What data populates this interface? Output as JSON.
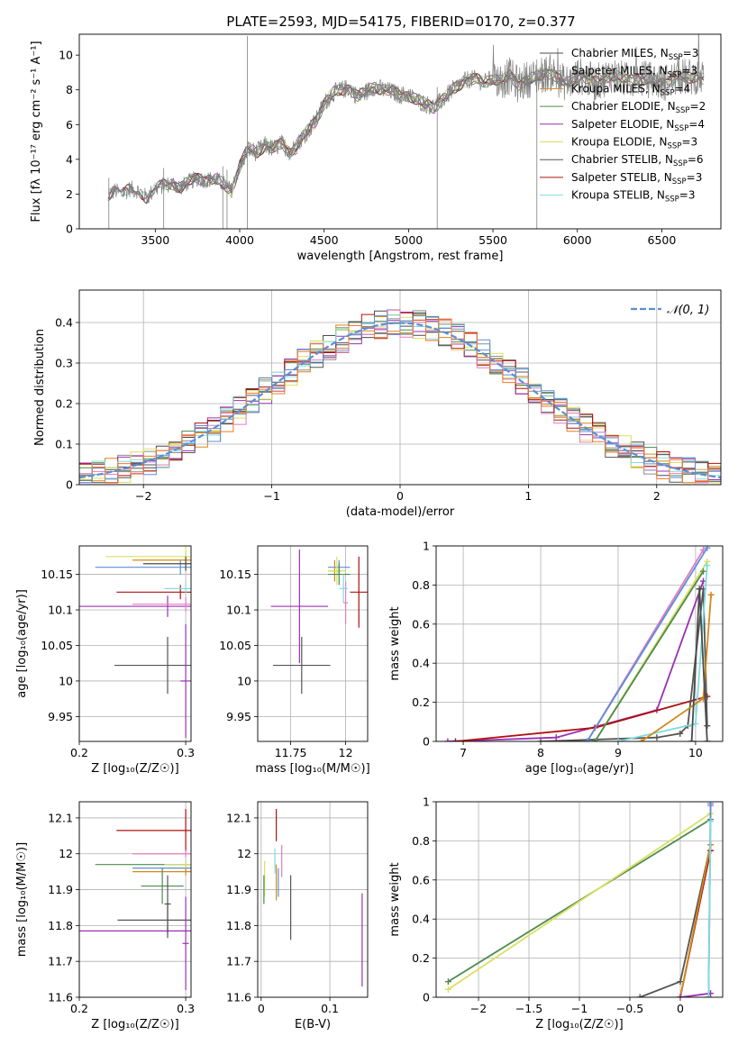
{
  "figure": {
    "title": "PLATE=2593, MJD=54175, FIBERID=0170, z=0.377"
  },
  "colors": {
    "Chabrier MILES": "#4a4a4a",
    "Salpeter MILES": "#8c8c8c",
    "Kroupa MILES": "#d08a1a",
    "Chabrier ELODIE": "#4f8a4f",
    "Salpeter ELODIE": "#9b30b4",
    "Kroupa ELODIE": "#d8e060",
    "Chabrier STELIB": "#555555",
    "Salpeter STELIB": "#b01010",
    "Kroupa STELIB": "#80dce0",
    "extra_pink": "#e27cc0",
    "extra_blue": "#5b8fd6",
    "extra_orange": "#f07a2a",
    "normal": "#5b8fd6"
  },
  "chart_data": [
    {
      "id": "spectrum",
      "type": "line",
      "title": "PLATE=2593, MJD=54175, FIBERID=0170, z=0.377",
      "xlabel": "wavelength [Angstrom, rest frame]",
      "ylabel": "Flux [fλ 10⁻¹⁷ erg cm⁻² s⁻¹ A⁻¹]",
      "xlim": [
        3050,
        6850
      ],
      "ylim": [
        0,
        11.2
      ],
      "xticks": [
        3500,
        4000,
        4500,
        5000,
        5500,
        6000,
        6500
      ],
      "yticks": [
        0,
        2,
        4,
        6,
        8,
        10
      ],
      "grid": false,
      "legend_position": "top-right",
      "legend": [
        {
          "label": "Chabrier MILES, N",
          "sub": "SSP",
          "suffix": "=3"
        },
        {
          "label": "Salpeter MILES, N",
          "sub": "SSP",
          "suffix": "=3"
        },
        {
          "label": "Kroupa MILES, N",
          "sub": "SSP",
          "suffix": "=4"
        },
        {
          "label": "Chabrier ELODIE, N",
          "sub": "SSP",
          "suffix": "=2"
        },
        {
          "label": "Salpeter ELODIE, N",
          "sub": "SSP",
          "suffix": "=4"
        },
        {
          "label": "Kroupa ELODIE, N",
          "sub": "SSP",
          "suffix": "=3"
        },
        {
          "label": "Chabrier STELIB, N",
          "sub": "SSP",
          "suffix": "=6"
        },
        {
          "label": "Salpeter STELIB, N",
          "sub": "SSP",
          "suffix": "=3"
        },
        {
          "label": "Kroupa STELIB, N",
          "sub": "SSP",
          "suffix": "=3"
        }
      ],
      "data_x": [
        3220,
        3260,
        3300,
        3350,
        3400,
        3450,
        3500,
        3550,
        3600,
        3650,
        3700,
        3750,
        3800,
        3850,
        3900,
        3950,
        4000,
        4050,
        4100,
        4150,
        4200,
        4250,
        4300,
        4350,
        4400,
        4450,
        4500,
        4550,
        4600,
        4650,
        4700,
        4750,
        4800,
        4850,
        4900,
        4950,
        5000,
        5050,
        5100,
        5150,
        5200,
        5250,
        5300,
        5350,
        5400,
        5450,
        5500,
        5550,
        5600,
        5650,
        5700,
        5750,
        5800,
        5850,
        5900,
        5950,
        6000,
        6050,
        6100,
        6150,
        6200,
        6250,
        6300,
        6350,
        6400,
        6450,
        6500,
        6550,
        6600,
        6650,
        6700,
        6750
      ],
      "data_y": [
        1.9,
        2.2,
        2.0,
        2.3,
        2.2,
        1.8,
        2.3,
        2.5,
        2.6,
        2.4,
        2.7,
        2.9,
        2.8,
        2.9,
        2.6,
        2.2,
        3.6,
        4.6,
        4.4,
        4.8,
        4.6,
        4.9,
        4.4,
        5.0,
        5.6,
        6.2,
        7.2,
        7.8,
        8.0,
        8.1,
        7.6,
        7.9,
        8.2,
        8.0,
        7.9,
        7.7,
        7.7,
        7.4,
        7.2,
        7.0,
        7.4,
        7.9,
        8.3,
        8.6,
        8.6,
        8.4,
        8.7,
        8.5,
        8.8,
        8.3,
        8.6,
        8.7,
        8.9,
        9.0,
        8.5,
        8.4,
        8.8,
        8.7,
        8.4,
        8.6,
        8.9,
        8.7,
        8.5,
        8.7,
        8.6,
        8.6,
        8.4,
        8.5,
        8.8,
        8.7,
        8.8,
        8.6
      ]
    },
    {
      "id": "residuals",
      "type": "histogram",
      "xlabel": "(data-model)/error",
      "ylabel": "Normed distribution",
      "xlim": [
        -2.5,
        2.5
      ],
      "ylim": [
        0,
        0.48
      ],
      "xticks": [
        -2,
        -1,
        0,
        1,
        2
      ],
      "yticks": [
        0.0,
        0.1,
        0.2,
        0.3,
        0.4
      ],
      "grid": true,
      "legend_position": "top-right",
      "legend": [
        {
          "label": "𝒩(0, 1)"
        }
      ],
      "bin_width": 0.1
    },
    {
      "id": "age_vs_Z",
      "type": "errorbar",
      "xlabel": "Z [log₁₀(Z/Z☉)]",
      "ylabel": "age  [log₁₀(age/yr)]",
      "xlim": [
        0.2,
        0.305
      ],
      "ylim": [
        9.915,
        10.19
      ],
      "xticks": [
        0.2,
        0.3
      ],
      "yticks": [
        9.95,
        10.0,
        10.05,
        10.1,
        10.15
      ],
      "grid": true,
      "points": [
        {
          "x": 0.283,
          "y": 10.022,
          "xerr": 0.05,
          "yerr": 0.04,
          "c": "#555555"
        },
        {
          "x": 0.283,
          "y": 10.105,
          "xerr": 0.1,
          "yerr": 0.015,
          "c": "#9b30b4"
        },
        {
          "x": 0.295,
          "y": 10.125,
          "xerr": 0.06,
          "yerr": 0.01,
          "c": "#b01010"
        },
        {
          "x": 0.295,
          "y": 10.16,
          "xerr": 0.08,
          "yerr": 0.01,
          "c": "#5b8fd6"
        },
        {
          "x": 0.3,
          "y": 10.17,
          "xerr": 0.05,
          "yerr": 0.01,
          "c": "#d08a1a"
        },
        {
          "x": 0.3,
          "y": 10.175,
          "xerr": 0.075,
          "yerr": 0.02,
          "c": "#d8e060"
        },
        {
          "x": 0.3,
          "y": 10.165,
          "xerr": 0.04,
          "yerr": 0.01,
          "c": "#4a4a4a"
        },
        {
          "x": 0.3,
          "y": 10.108,
          "xerr": 0.05,
          "yerr": 0.01,
          "c": "#e27cc0"
        },
        {
          "x": 0.3,
          "y": 10.13,
          "xerr": 0.02,
          "yerr": 0.01,
          "c": "#80dce0"
        },
        {
          "x": 0.3,
          "y": 10.0,
          "xerr": 0.005,
          "yerr": 0.08,
          "c": "#9b30b4"
        }
      ]
    },
    {
      "id": "age_vs_mass",
      "type": "errorbar",
      "xlabel": "mass [log₁₀(M/M☉)]",
      "ylabel": "",
      "xlim": [
        11.6,
        12.1
      ],
      "ylim": [
        9.915,
        10.19
      ],
      "xticks": [
        11.75,
        12.0
      ],
      "yticks": [
        9.95,
        10.0,
        10.05,
        10.1,
        10.15
      ],
      "grid": true,
      "points": [
        {
          "x": 11.8,
          "y": 10.022,
          "xerr": 0.13,
          "yerr": 0.04,
          "c": "#555555"
        },
        {
          "x": 11.79,
          "y": 10.105,
          "xerr": 0.13,
          "yerr": 0.08,
          "c": "#9b30b4"
        },
        {
          "x": 12.06,
          "y": 10.125,
          "xerr": 0.04,
          "yerr": 0.05,
          "c": "#b01010"
        },
        {
          "x": 11.97,
          "y": 10.16,
          "xerr": 0.05,
          "yerr": 0.01,
          "c": "#5b8fd6"
        },
        {
          "x": 11.95,
          "y": 10.155,
          "xerr": 0.03,
          "yerr": 0.015,
          "c": "#d08a1a"
        },
        {
          "x": 11.96,
          "y": 10.155,
          "xerr": 0.04,
          "yerr": 0.02,
          "c": "#d8e060"
        },
        {
          "x": 11.97,
          "y": 10.15,
          "xerr": 0.05,
          "yerr": 0.015,
          "c": "#4f8a4f"
        },
        {
          "x": 12.0,
          "y": 10.11,
          "xerr": 0.01,
          "yerr": 0.03,
          "c": "#e27cc0"
        },
        {
          "x": 11.99,
          "y": 10.13,
          "xerr": 0.02,
          "yerr": 0.02,
          "c": "#80dce0"
        }
      ]
    },
    {
      "id": "weight_vs_age",
      "type": "line",
      "xlabel": "age  [log₁₀(age/yr)]",
      "ylabel": "mass weight",
      "xlim": [
        6.65,
        10.35
      ],
      "ylim": [
        0,
        1.0
      ],
      "xticks": [
        7,
        8,
        9,
        10
      ],
      "yticks": [
        0.0,
        0.2,
        0.4,
        0.6,
        0.8,
        1.0
      ],
      "grid": true,
      "series": [
        {
          "c": "#9b30b4",
          "x": [
            6.8,
            8.2,
            9.5,
            10.1
          ],
          "y": [
            0.0,
            0.02,
            0.16,
            0.82
          ]
        },
        {
          "c": "#b01010",
          "x": [
            6.9,
            8.7,
            10.15
          ],
          "y": [
            0.0,
            0.07,
            0.23
          ]
        },
        {
          "c": "#555555",
          "x": [
            8.0,
            9.5,
            9.8,
            9.9,
            10.1,
            10.15
          ],
          "y": [
            0.0,
            0.02,
            0.04,
            0.08,
            0.78,
            0.08
          ]
        },
        {
          "c": "#e27cc0",
          "x": [
            8.6,
            10.1
          ],
          "y": [
            0.0,
            0.98
          ]
        },
        {
          "c": "#5b8fd6",
          "x": [
            8.6,
            10.15
          ],
          "y": [
            0.0,
            0.99
          ]
        },
        {
          "c": "#d8e060",
          "x": [
            8.7,
            10.15
          ],
          "y": [
            0.0,
            0.92
          ]
        },
        {
          "c": "#4f8a4f",
          "x": [
            8.7,
            10.1
          ],
          "y": [
            0.0,
            0.87
          ]
        },
        {
          "c": "#80dce0",
          "x": [
            9.0,
            10.0,
            10.15
          ],
          "y": [
            0.0,
            0.09,
            0.9
          ]
        },
        {
          "c": "#d08a1a",
          "x": [
            9.3,
            10.1,
            10.2
          ],
          "y": [
            0.0,
            0.22,
            0.75
          ]
        },
        {
          "c": "#4a4a4a",
          "x": [
            9.95,
            10.05,
            10.15
          ],
          "y": [
            0.0,
            0.78,
            0.0
          ]
        }
      ]
    },
    {
      "id": "mass_vs_Z",
      "type": "errorbar",
      "xlabel": "Z [log₁₀(Z/Z☉)]",
      "ylabel": "mass [log₁₀(M/M☉)]",
      "xlim": [
        0.2,
        0.305
      ],
      "ylim": [
        11.6,
        12.145
      ],
      "xticks": [
        0.2,
        0.3
      ],
      "yticks": [
        11.6,
        11.7,
        11.8,
        11.9,
        12.0,
        12.1
      ],
      "grid": true,
      "points": [
        {
          "x": 0.3,
          "y": 12.065,
          "xerr": 0.065,
          "yerr": 0.06,
          "c": "#b01010"
        },
        {
          "x": 0.3,
          "y": 12.0,
          "xerr": 0.05,
          "yerr": 0.01,
          "c": "#e27cc0"
        },
        {
          "x": 0.3,
          "y": 11.97,
          "xerr": 0.085,
          "yerr": 0.01,
          "c": "#4f8a4f"
        },
        {
          "x": 0.3,
          "y": 11.96,
          "xerr": 0.05,
          "yerr": 0.01,
          "c": "#5b8fd6"
        },
        {
          "x": 0.3,
          "y": 11.95,
          "xerr": 0.05,
          "yerr": 0.01,
          "c": "#d08a1a"
        },
        {
          "x": 0.3,
          "y": 11.97,
          "xerr": 0.02,
          "yerr": 0.01,
          "c": "#d8e060"
        },
        {
          "x": 0.278,
          "y": 11.91,
          "xerr": 0.02,
          "yerr": 0.05,
          "c": "#4f8a4f"
        },
        {
          "x": 0.283,
          "y": 11.815,
          "xerr": 0.047,
          "yerr": 0.05,
          "c": "#555555"
        },
        {
          "x": 0.283,
          "y": 11.785,
          "xerr": 0.1,
          "yerr": 0.01,
          "c": "#9b30b4"
        },
        {
          "x": 0.3,
          "y": 11.75,
          "xerr": 0.003,
          "yerr": 0.13,
          "c": "#9b30b4"
        },
        {
          "x": 0.283,
          "y": 11.86,
          "xerr": 0.003,
          "yerr": 0.08,
          "c": "#555555"
        }
      ]
    },
    {
      "id": "mass_vs_EBV",
      "type": "errorbar",
      "xlabel": "E(B-V)",
      "ylabel": "",
      "xlim": [
        -0.005,
        0.155
      ],
      "ylim": [
        11.6,
        12.145
      ],
      "xticks": [
        0.0,
        0.1
      ],
      "yticks": [
        11.6,
        11.7,
        11.8,
        11.9,
        12.0,
        12.1
      ],
      "grid": true,
      "points": [
        {
          "x": 0.022,
          "y": 12.08,
          "xerr": 0,
          "yerr": 0.045,
          "c": "#b01010"
        },
        {
          "x": 0.02,
          "y": 11.98,
          "xerr": 0,
          "yerr": 0.035,
          "c": "#80dce0"
        },
        {
          "x": 0.03,
          "y": 11.98,
          "xerr": 0,
          "yerr": 0.045,
          "c": "#e27cc0"
        },
        {
          "x": 0.005,
          "y": 11.93,
          "xerr": 0,
          "yerr": 0.05,
          "c": "#d8e060"
        },
        {
          "x": 0.004,
          "y": 11.9,
          "xerr": 0,
          "yerr": 0.04,
          "c": "#4f8a4f"
        },
        {
          "x": 0.022,
          "y": 11.92,
          "xerr": 0,
          "yerr": 0.05,
          "c": "#d08a1a"
        },
        {
          "x": 0.025,
          "y": 11.92,
          "xerr": 0,
          "yerr": 0.04,
          "c": "#5b8fd6"
        },
        {
          "x": 0.043,
          "y": 11.85,
          "xerr": 0,
          "yerr": 0.09,
          "c": "#555555"
        },
        {
          "x": 0.147,
          "y": 11.76,
          "xerr": 0,
          "yerr": 0.13,
          "c": "#9b30b4"
        }
      ]
    },
    {
      "id": "weight_vs_Z",
      "type": "line",
      "xlabel": "Z [log₁₀(Z/Z☉)]",
      "ylabel": "mass weight",
      "xlim": [
        -2.42,
        0.42
      ],
      "ylim": [
        0,
        1.0
      ],
      "xticks": [
        -2.0,
        -1.5,
        -1.0,
        -0.5,
        0.0
      ],
      "yticks": [
        0.0,
        0.2,
        0.4,
        0.6,
        0.8,
        1.0
      ],
      "grid": true,
      "series": [
        {
          "c": "#4f8a4f",
          "x": [
            -2.3,
            0.3
          ],
          "y": [
            0.08,
            0.91
          ]
        },
        {
          "c": "#d8e060",
          "x": [
            -2.3,
            0.3
          ],
          "y": [
            0.04,
            0.94
          ]
        },
        {
          "c": "#555555",
          "x": [
            -0.4,
            0.0,
            0.3
          ],
          "y": [
            0.0,
            0.08,
            0.78
          ]
        },
        {
          "c": "#b01010",
          "x": [
            0.0,
            0.3
          ],
          "y": [
            0.0,
            0.75
          ]
        },
        {
          "c": "#d08a1a",
          "x": [
            0.0,
            0.3
          ],
          "y": [
            0.0,
            0.78
          ]
        },
        {
          "c": "#9b30b4",
          "x": [
            0.0,
            0.3
          ],
          "y": [
            0.0,
            0.02
          ]
        },
        {
          "c": "#e27cc0",
          "x": [
            0.28,
            0.3
          ],
          "y": [
            0.0,
            0.98
          ]
        },
        {
          "c": "#5b8fd6",
          "x": [
            0.28,
            0.3
          ],
          "y": [
            0.0,
            0.99
          ]
        },
        {
          "c": "#80dce0",
          "x": [
            0.28,
            0.3
          ],
          "y": [
            0.0,
            0.9
          ]
        }
      ]
    }
  ]
}
